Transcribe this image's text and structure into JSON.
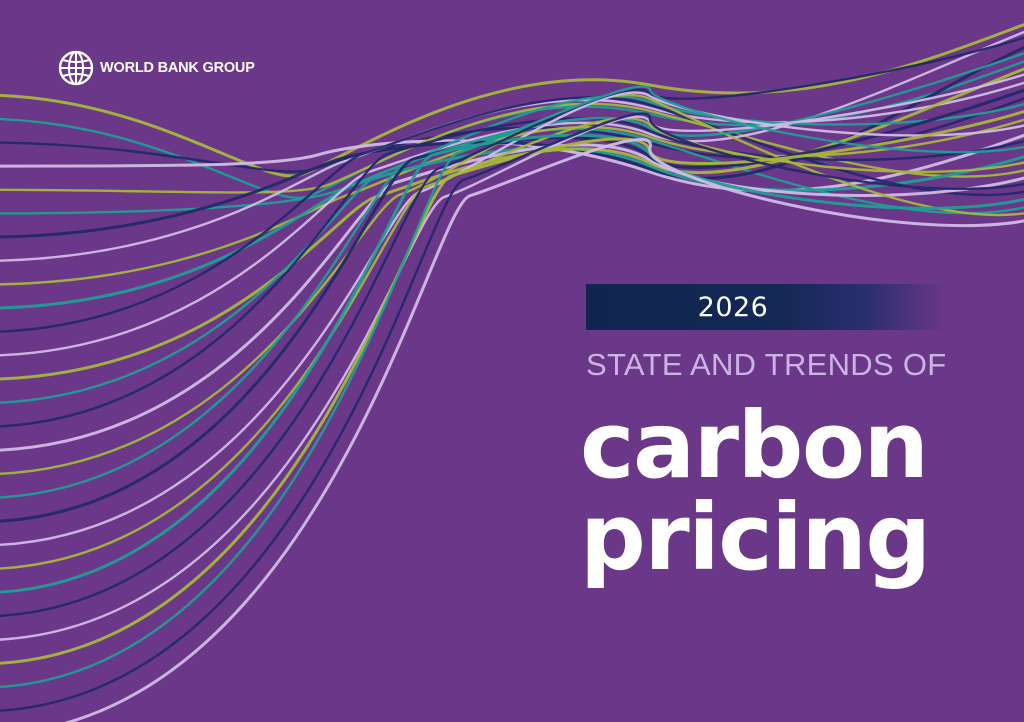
{
  "publisher": {
    "name": "WORLD BANK GROUP",
    "icon": "globe-icon"
  },
  "cover": {
    "year": "2026",
    "subtitle": "STATE AND TRENDS OF",
    "title_line1": "carbon",
    "title_line2": "pricing"
  },
  "colors": {
    "background": "#6b3789",
    "year_band": "#10254f",
    "subtitle": "#cdb3e3",
    "title": "#ffffff",
    "wave_lines": [
      "#a6b63c",
      "#1f9e96",
      "#23296a",
      "#d2bbe6"
    ]
  }
}
